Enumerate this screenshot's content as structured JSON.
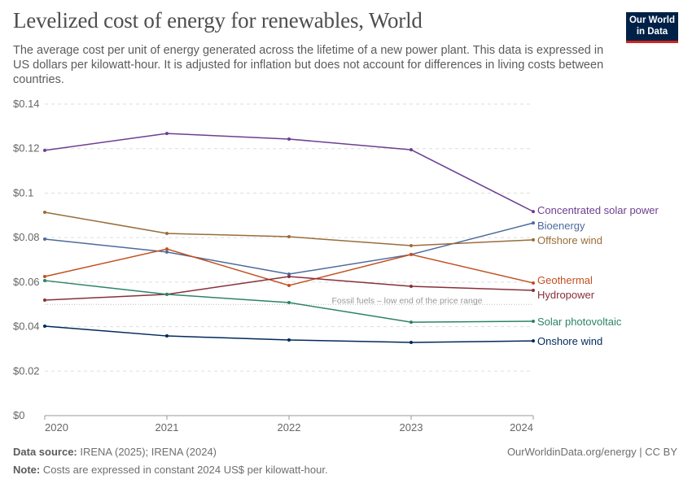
{
  "title": "Levelized cost of energy for renewables, World",
  "subtitle": "The average cost per unit of energy generated across the lifetime of a new power plant. This data is expressed in US dollars per kilowatt-hour. It is adjusted for inflation but does not account for differences in living costs between countries.",
  "logo": "Our World in Data",
  "footer": {
    "source_label": "Data source:",
    "source": "IRENA (2025); IRENA (2024)",
    "note_label": "Note:",
    "note": "Costs are expressed in constant 2024 US$ per kilowatt-hour.",
    "license": "OurWorldinData.org/energy | CC BY"
  },
  "chart_data": {
    "type": "line",
    "x": [
      2020,
      2021,
      2022,
      2023,
      2024
    ],
    "ylim": [
      0,
      0.14
    ],
    "yticks": [
      0,
      0.02,
      0.04,
      0.06,
      0.08,
      0.1,
      0.12,
      0.14
    ],
    "ytick_labels": [
      "$0",
      "$0.02",
      "$0.04",
      "$0.06",
      "$0.08",
      "$0.1",
      "$0.12",
      "$0.14"
    ],
    "grid": true,
    "legend": "right-end labels",
    "reference_line": {
      "value": 0.05,
      "label": "Fossil fuels – low end of the price range"
    },
    "series": [
      {
        "name": "Concentrated solar power",
        "color": "#6d3e91",
        "values": [
          0.1192,
          0.1268,
          0.1243,
          0.1195,
          0.0917
        ]
      },
      {
        "name": "Bioenergy",
        "color": "#4c6a9c",
        "values": [
          0.0793,
          0.0735,
          0.0636,
          0.0724,
          0.0866
        ]
      },
      {
        "name": "Offshore wind",
        "color": "#996d39",
        "values": [
          0.0914,
          0.0819,
          0.0804,
          0.0764,
          0.079
        ]
      },
      {
        "name": "Geothermal",
        "color": "#c15020",
        "values": [
          0.0625,
          0.0749,
          0.0585,
          0.0724,
          0.0596
        ]
      },
      {
        "name": "Hydropower",
        "color": "#883039",
        "values": [
          0.0519,
          0.0545,
          0.0625,
          0.0581,
          0.0563
        ]
      },
      {
        "name": "Solar photovoltaic",
        "color": "#2c8465",
        "values": [
          0.0607,
          0.0545,
          0.0508,
          0.042,
          0.0424
        ]
      },
      {
        "name": "Onshore wind",
        "color": "#00295b",
        "values": [
          0.0402,
          0.0358,
          0.034,
          0.0329,
          0.0336
        ]
      }
    ]
  }
}
